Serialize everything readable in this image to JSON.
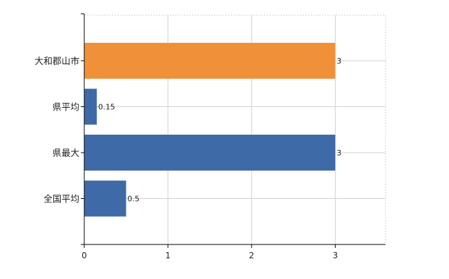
{
  "chart_data": {
    "type": "bar",
    "orientation": "horizontal",
    "categories": [
      "大和郡山市",
      "県平均",
      "県最大",
      "全国平均"
    ],
    "values": [
      3,
      0.15,
      3,
      0.5
    ],
    "data_labels": [
      "3",
      "0.15",
      "3",
      "0.5"
    ],
    "bar_colors": [
      "#f0913a",
      "#3e6aa8",
      "#3e6aa8",
      "#3e6aa8"
    ],
    "xlim": [
      0,
      3.6
    ],
    "x_ticks": [
      0,
      1,
      2,
      3
    ],
    "x_tick_labels": [
      "0",
      "1",
      "2",
      "3"
    ],
    "grid": true,
    "legend": false,
    "title": "",
    "xlabel": "",
    "ylabel": ""
  }
}
